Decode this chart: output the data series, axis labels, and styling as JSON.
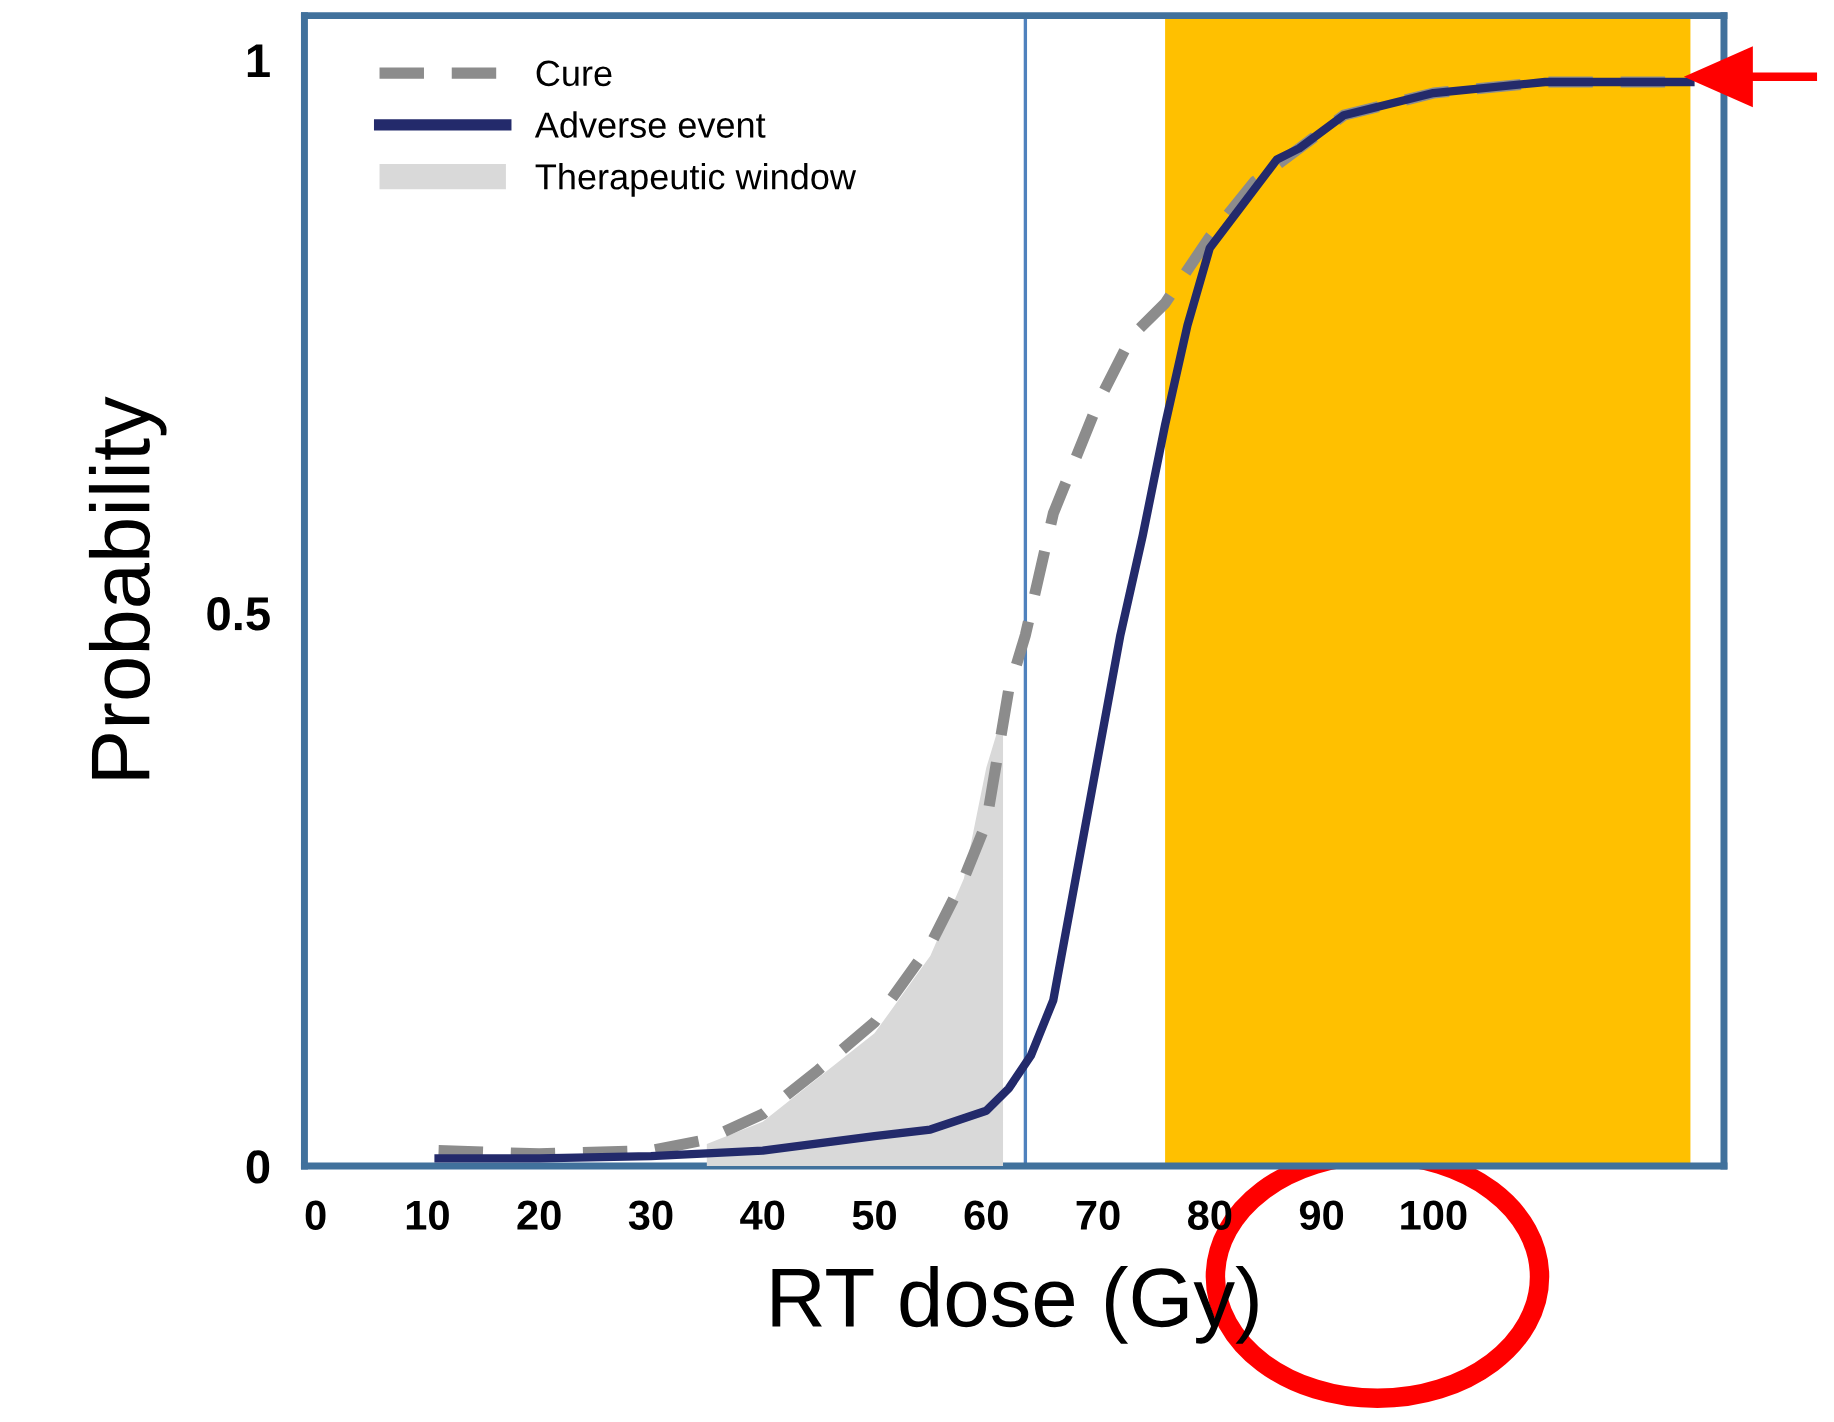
{
  "chart_data": {
    "type": "line",
    "xlabel": "RT dose (Gy)",
    "ylabel": "Probability",
    "xlim": [
      -1,
      126
    ],
    "xticks": [
      0,
      10,
      20,
      30,
      40,
      50,
      60,
      70,
      80,
      90,
      100
    ],
    "ylim": [
      0,
      1.04
    ],
    "yticks": [
      0,
      0.5,
      1
    ],
    "grid": false,
    "legend": "top left",
    "series": [
      {
        "name": "Cure",
        "type": "line",
        "line_style": "dashed",
        "color": "#8c8c8c",
        "x": [
          11,
          20,
          30,
          35,
          40,
          45,
          50,
          55,
          58,
          60,
          62,
          63.5,
          66,
          70,
          73,
          76,
          80,
          84,
          88,
          92,
          100,
          110,
          123
        ],
        "values": [
          0.014,
          0.011,
          0.014,
          0.024,
          0.047,
          0.087,
          0.13,
          0.2,
          0.26,
          0.31,
          0.43,
          0.48,
          0.59,
          0.69,
          0.75,
          0.78,
          0.84,
          0.89,
          0.92,
          0.95,
          0.97,
          0.98,
          0.98
        ]
      },
      {
        "name": "Adverse event",
        "type": "line",
        "line_style": "solid",
        "color": "#232a6b",
        "x": [
          11,
          20,
          30,
          40,
          50,
          55,
          60,
          62,
          64,
          66,
          68,
          70,
          72,
          74,
          76,
          78,
          80,
          83,
          86,
          88,
          92,
          100,
          110,
          123
        ],
        "values": [
          0.007,
          0.007,
          0.009,
          0.014,
          0.027,
          0.033,
          0.05,
          0.07,
          0.1,
          0.15,
          0.26,
          0.37,
          0.48,
          0.57,
          0.67,
          0.76,
          0.83,
          0.87,
          0.91,
          0.92,
          0.95,
          0.97,
          0.98,
          0.98
        ]
      },
      {
        "name": "Therapeutic window",
        "type": "area",
        "color": "#d9d9d9",
        "x": [
          35,
          40,
          45,
          50,
          55,
          58,
          60,
          61.5
        ],
        "values": [
          0.02,
          0.04,
          0.08,
          0.12,
          0.19,
          0.26,
          0.36,
          0.41
        ]
      }
    ],
    "ref_lines": [
      {
        "axis": "x",
        "value": 63.5,
        "color": "#4f81bd",
        "line_style": "solid"
      }
    ],
    "bands": [
      {
        "axis": "x",
        "from": 76,
        "to": 123,
        "color": "#ffc000"
      }
    ]
  }
}
